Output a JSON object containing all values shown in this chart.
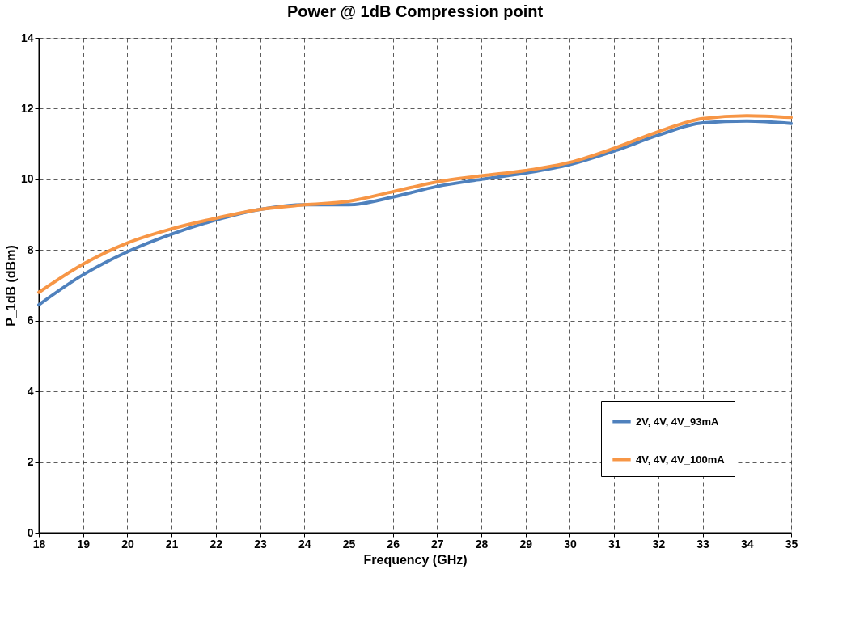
{
  "chart_data": {
    "type": "line",
    "title": "Power @ 1dB Compression point",
    "xlabel": "Frequency (GHz)",
    "ylabel": "P_1dB (dBm)",
    "x": [
      18,
      19,
      20,
      21,
      22,
      23,
      24,
      25,
      26,
      27,
      28,
      29,
      30,
      31,
      32,
      33,
      34,
      35
    ],
    "series": [
      {
        "name": "2V, 4V, 4V_93mA",
        "color": "#4f81bd",
        "values": [
          6.45,
          7.3,
          7.95,
          8.45,
          8.85,
          9.15,
          9.28,
          9.28,
          9.5,
          9.8,
          10.0,
          10.18,
          10.42,
          10.8,
          11.25,
          11.6,
          11.65,
          11.58
        ]
      },
      {
        "name": "4V, 4V, 4V_100mA",
        "color": "#f79646",
        "values": [
          6.8,
          7.6,
          8.2,
          8.6,
          8.9,
          9.15,
          9.28,
          9.38,
          9.65,
          9.93,
          10.1,
          10.25,
          10.48,
          10.88,
          11.35,
          11.72,
          11.8,
          11.75
        ]
      }
    ],
    "xlim": [
      18,
      35
    ],
    "xticks": [
      18,
      19,
      20,
      21,
      22,
      23,
      24,
      25,
      26,
      27,
      28,
      29,
      30,
      31,
      32,
      33,
      34,
      35
    ],
    "ylim": [
      0,
      14
    ],
    "yticks": [
      0,
      2,
      4,
      6,
      8,
      10,
      12,
      14
    ],
    "grid": true,
    "legend": "bottom right",
    "marker": "none",
    "line_style": "solid"
  }
}
